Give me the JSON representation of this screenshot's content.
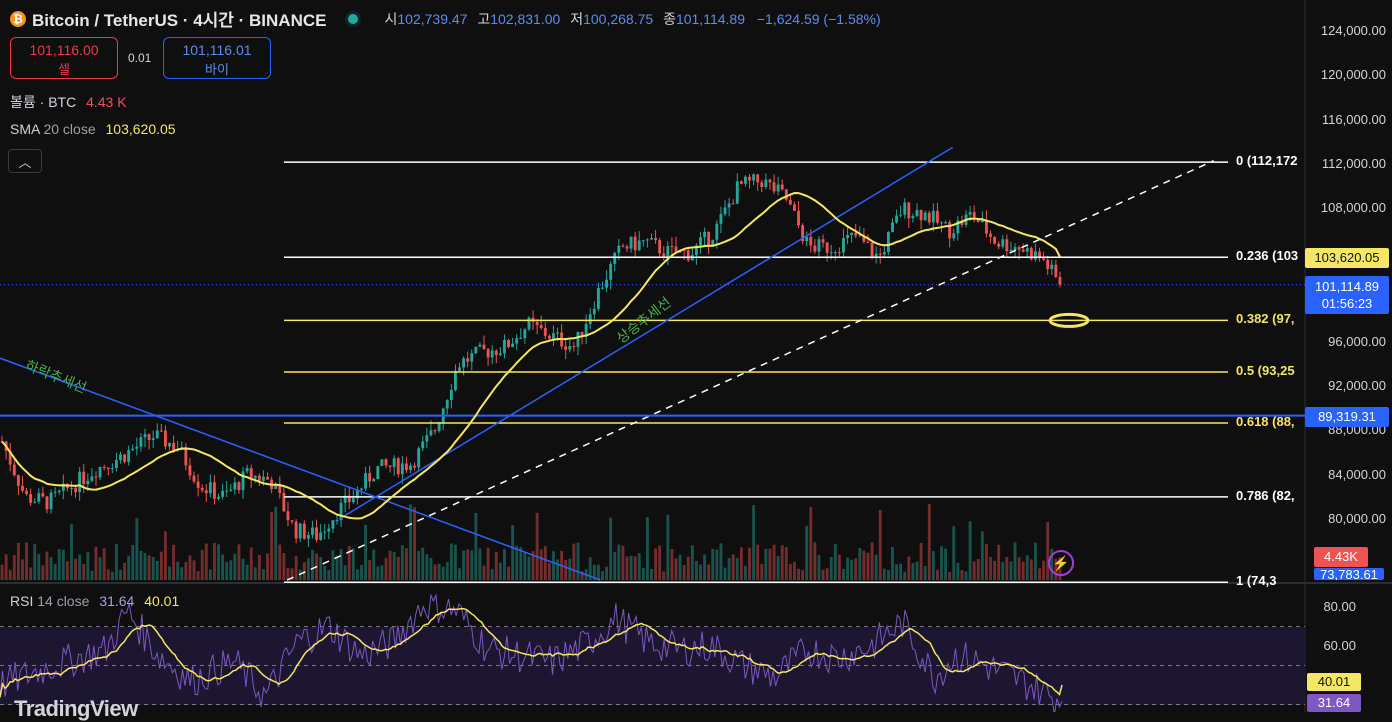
{
  "header": {
    "symbol": "Bitcoin / TetherUS · 4시간 · BINANCE",
    "open_k": "시",
    "open": "102,739.47",
    "high_k": "고",
    "high": "102,831.00",
    "low_k": "저",
    "low": "100,268.75",
    "close_k": "종",
    "close": "101,114.89",
    "change": "−1,624.59 (−1.58%)"
  },
  "trade": {
    "sell_price": "101,116.00",
    "sell_label": "셀",
    "spread": "0.01",
    "buy_price": "101,116.01",
    "buy_label": "바이"
  },
  "indicators": {
    "volume_label": "볼륨 · BTC",
    "volume_value": "4.43 K",
    "sma_name": "SMA",
    "sma_params": "20 close",
    "sma_value": "103,620.05",
    "rsi_name": "RSI",
    "rsi_params": "14 close",
    "rsi_value": "31.64",
    "rsi_ma_value": "40.01"
  },
  "collapse_icon": "chevron-up-icon",
  "price_axis": [
    "124,000.00",
    "120,000.00",
    "116,000.00",
    "112,000.00",
    "108,000.00",
    "96,000.00",
    "92,000.00",
    "88,000.00",
    "84,000.00",
    "80,000.00"
  ],
  "rsi_axis": [
    "80.00",
    "60.00"
  ],
  "price_tags": {
    "sma": "103,620.05",
    "last": "101,114.89",
    "countdown": "01:56:23",
    "line": "89,319.31",
    "volume": "4.43K",
    "low_cut": "73,783.61",
    "rsi_ma": "40.01",
    "rsi": "31.64"
  },
  "fib_labels": [
    {
      "text": "0 (112,172",
      "color": "#ffffff"
    },
    {
      "text": "0.236 (103",
      "color": "#ffffff"
    },
    {
      "text": "0.382 (97,",
      "color": "#f5e663"
    },
    {
      "text": "0.5 (93,25",
      "color": "#f5e663"
    },
    {
      "text": "0.618 (88,",
      "color": "#f5e663"
    },
    {
      "text": "0.786 (82,",
      "color": "#ffffff"
    },
    {
      "text": "1 (74,3",
      "color": "#ffffff"
    }
  ],
  "annotations": {
    "down_trend": "하락추세선",
    "up_trend": "상승추세선"
  },
  "watermark": "TradingView",
  "colors": {
    "background": "#0f0f0f",
    "up": "#26a69a",
    "down": "#ef5350",
    "sma": "#f5e663",
    "trendline": "#2962ff",
    "rsi_line": "#7e57c2",
    "rsi_ma": "#f5e663",
    "fib_white": "#ffffff",
    "fib_yellow": "#f5e663"
  },
  "chart_data": [
    {
      "type": "candlestick",
      "title": "Bitcoin / TetherUS · 4시간 · BINANCE",
      "ylim": [
        74000,
        125000
      ],
      "price_path": [
        [
          0,
          87000
        ],
        [
          0.02,
          82000
        ],
        [
          0.04,
          81500
        ],
        [
          0.06,
          83000
        ],
        [
          0.08,
          84500
        ],
        [
          0.1,
          85500
        ],
        [
          0.13,
          87500
        ],
        [
          0.15,
          86500
        ],
        [
          0.17,
          83000
        ],
        [
          0.19,
          82000
        ],
        [
          0.21,
          84000
        ],
        [
          0.23,
          83500
        ],
        [
          0.25,
          79000
        ],
        [
          0.27,
          78500
        ],
        [
          0.285,
          80500
        ],
        [
          0.3,
          82000
        ],
        [
          0.32,
          84500
        ],
        [
          0.35,
          85000
        ],
        [
          0.37,
          88000
        ],
        [
          0.39,
          94000
        ],
        [
          0.41,
          95000
        ],
        [
          0.43,
          95500
        ],
        [
          0.45,
          97500
        ],
        [
          0.47,
          96500
        ],
        [
          0.49,
          95500
        ],
        [
          0.51,
          100500
        ],
        [
          0.53,
          104500
        ],
        [
          0.55,
          105000
        ],
        [
          0.57,
          104000
        ],
        [
          0.59,
          104000
        ],
        [
          0.61,
          106000
        ],
        [
          0.63,
          110000
        ],
        [
          0.65,
          110500
        ],
        [
          0.67,
          109000
        ],
        [
          0.69,
          104500
        ],
        [
          0.71,
          104500
        ],
        [
          0.73,
          105500
        ],
        [
          0.75,
          103500
        ],
        [
          0.77,
          108000
        ],
        [
          0.79,
          107500
        ],
        [
          0.81,
          106000
        ],
        [
          0.83,
          107500
        ],
        [
          0.85,
          105000
        ],
        [
          0.87,
          104500
        ],
        [
          0.89,
          103500
        ],
        [
          0.905,
          101100
        ]
      ],
      "sma20_value": 103620.05,
      "last_price": 101114.89,
      "horizontal_line": 89319.31,
      "fibonacci": [
        {
          "level": "0",
          "price": 112172
        },
        {
          "level": "0.236",
          "price": 103600
        },
        {
          "level": "0.382",
          "price": 97900
        },
        {
          "level": "0.5",
          "price": 93250
        },
        {
          "level": "0.618",
          "price": 88650
        },
        {
          "level": "0.786",
          "price": 82000
        },
        {
          "level": "1",
          "price": 74300
        }
      ],
      "trendlines": [
        {
          "name": "하락추세선",
          "from": [
            0,
            94500
          ],
          "to": [
            0.46,
            74500
          ]
        },
        {
          "name": "상승추세선",
          "from": [
            0.26,
            80000
          ],
          "to": [
            0.73,
            113500
          ]
        },
        {
          "name": "dashed",
          "from": [
            0.22,
            74500
          ],
          "to": [
            0.93,
            112300
          ]
        }
      ]
    },
    {
      "type": "line",
      "title": "RSI 14 close",
      "ylim": [
        20,
        90
      ],
      "bands": [
        70,
        50,
        30
      ],
      "rsi_path": [
        [
          0,
          40
        ],
        [
          0.05,
          50
        ],
        [
          0.1,
          58
        ],
        [
          0.12,
          78
        ],
        [
          0.15,
          55
        ],
        [
          0.18,
          42
        ],
        [
          0.22,
          52
        ],
        [
          0.25,
          34
        ],
        [
          0.28,
          62
        ],
        [
          0.31,
          70
        ],
        [
          0.34,
          55
        ],
        [
          0.37,
          62
        ],
        [
          0.4,
          82
        ],
        [
          0.43,
          78
        ],
        [
          0.46,
          58
        ],
        [
          0.49,
          55
        ],
        [
          0.52,
          52
        ],
        [
          0.55,
          60
        ],
        [
          0.58,
          74
        ],
        [
          0.61,
          62
        ],
        [
          0.64,
          58
        ],
        [
          0.67,
          60
        ],
        [
          0.7,
          50
        ],
        [
          0.73,
          44
        ],
        [
          0.76,
          58
        ],
        [
          0.79,
          54
        ],
        [
          0.82,
          60
        ],
        [
          0.85,
          72
        ],
        [
          0.88,
          44
        ],
        [
          0.9,
          55
        ],
        [
          0.92,
          52
        ],
        [
          0.95,
          45
        ],
        [
          0.97,
          40
        ],
        [
          1.0,
          31.64
        ]
      ],
      "rsi_value": 31.64,
      "rsi_ma_value": 40.01
    }
  ]
}
